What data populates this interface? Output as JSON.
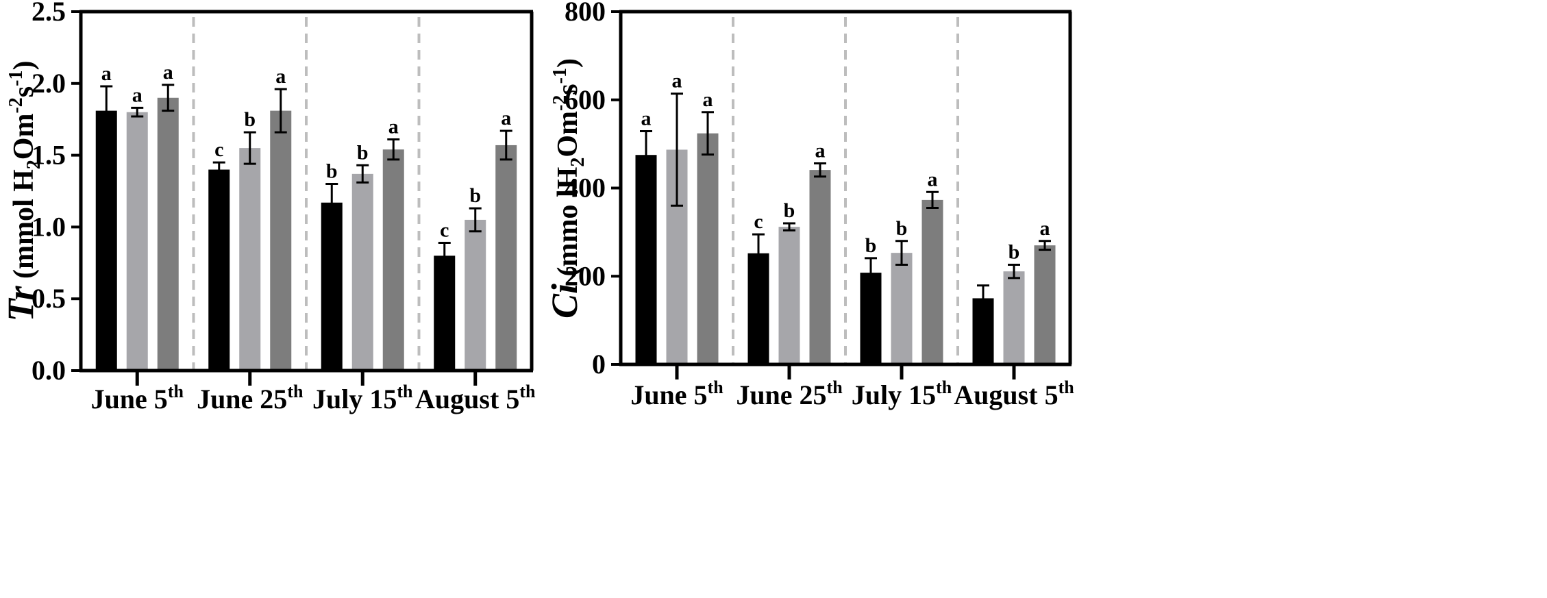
{
  "colors": {
    "series": [
      "#000000",
      "#a6a6aa",
      "#7d7d7d"
    ],
    "divider": "#bdbdbd",
    "axis": "#000000"
  },
  "chart_data": [
    {
      "type": "bar",
      "ylabel": {
        "italic": "Tr",
        "pre": "(mmol H",
        "sub": "2",
        "mid": "Om",
        "sup1": "-2",
        "s": "s",
        "sup2": "-1",
        "post": ")"
      },
      "ylim": [
        0,
        2.5
      ],
      "ticks": [
        "0.0",
        "0.5",
        "1.0",
        "1.5",
        "2.0",
        "2.5"
      ],
      "tick_values": [
        0,
        0.5,
        1.0,
        1.5,
        2.0,
        2.5
      ],
      "categories": [
        {
          "main": "June 5",
          "sup": "th"
        },
        {
          "main": "June 25",
          "sup": "th"
        },
        {
          "main": "July 15",
          "sup": "th"
        },
        {
          "main": "August 5",
          "sup": "th"
        }
      ],
      "values": [
        [
          1.81,
          1.8,
          1.9
        ],
        [
          1.4,
          1.55,
          1.81
        ],
        [
          1.17,
          1.37,
          1.54
        ],
        [
          0.8,
          1.05,
          1.57
        ]
      ],
      "errors": [
        [
          0.17,
          0.03,
          0.09
        ],
        [
          0.05,
          0.11,
          0.15
        ],
        [
          0.13,
          0.06,
          0.07
        ],
        [
          0.09,
          0.08,
          0.1
        ]
      ],
      "letters": [
        [
          "a",
          "a",
          "a"
        ],
        [
          "c",
          "b",
          "a"
        ],
        [
          "b",
          "b",
          "a"
        ],
        [
          "c",
          "b",
          "a"
        ]
      ]
    },
    {
      "type": "bar",
      "ylabel": {
        "italic": "Ci",
        "pre": "(mmo lH",
        "sub": "2",
        "mid": "Om",
        "sup1": "-2",
        "s": "s",
        "sup2": "-1",
        "post": ")"
      },
      "ylim": [
        0,
        800
      ],
      "ticks": [
        "0",
        "200",
        "400",
        "600",
        "800"
      ],
      "tick_values": [
        0,
        200,
        400,
        600,
        800
      ],
      "categories": [
        {
          "main": "June 5",
          "sup": "th"
        },
        {
          "main": "June 25",
          "sup": "th"
        },
        {
          "main": "July 15",
          "sup": "th"
        },
        {
          "main": "August 5",
          "sup": "th"
        }
      ],
      "values": [
        [
          475,
          487,
          524
        ],
        [
          252,
          312,
          441
        ],
        [
          208,
          253,
          373
        ],
        [
          150,
          211,
          270
        ]
      ],
      "errors": [
        [
          54,
          127,
          48
        ],
        [
          43,
          8,
          15
        ],
        [
          33,
          27,
          18
        ],
        [
          29,
          15,
          10
        ]
      ],
      "letters": [
        [
          "a",
          "a",
          "a"
        ],
        [
          "c",
          "b",
          "a"
        ],
        [
          "b",
          "b",
          "a"
        ],
        [
          "",
          "b",
          "a"
        ]
      ]
    }
  ]
}
